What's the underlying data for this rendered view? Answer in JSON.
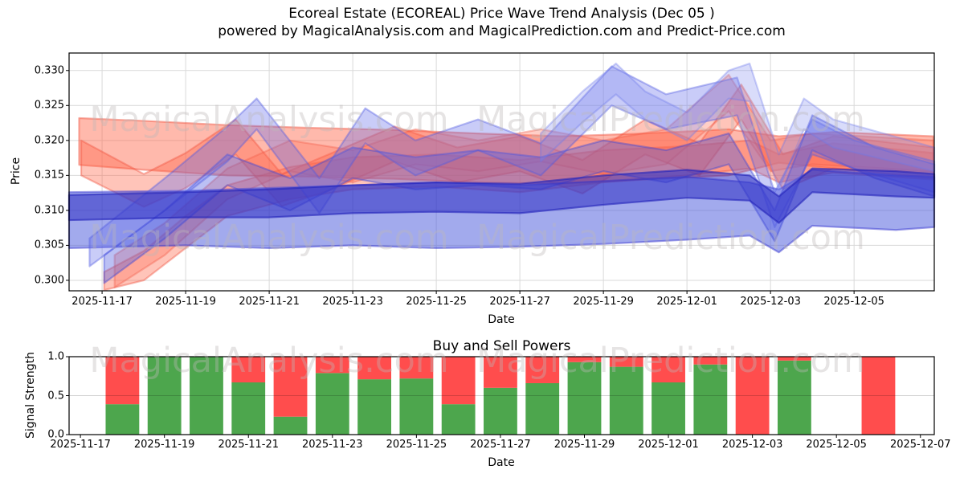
{
  "title": {
    "line1": "Ecoreal Estate (ECOREAL) Price Wave Trend Analysis (Dec 05 )",
    "line2": "powered by MagicalAnalysis.com and MagicalPrediction.com and Predict-Price.com"
  },
  "watermarks": {
    "left_text": "MagicalAnalysis.com",
    "right_text": "MagicalPrediction.com",
    "color": "#e8e4e4"
  },
  "colors": {
    "band_red": "#ff6347",
    "band_blue": "#4155e1",
    "bar_green": "#4da64d",
    "bar_red": "#ff4d4d",
    "grid": "#d9d9d9",
    "frame": "#000000"
  },
  "chart_data": [
    {
      "type": "area",
      "name": "price_wave_trend",
      "title": "Ecoreal Estate (ECOREAL) Price Wave Trend Analysis (Dec 05 )",
      "xlabel": "Date",
      "ylabel": "Price",
      "grid": true,
      "ylim": [
        0.2985,
        0.3325
      ],
      "yticks": [
        0.3,
        0.305,
        0.31,
        0.315,
        0.32,
        0.325,
        0.33
      ],
      "x_unit": "days since 2025-11-17",
      "xlim_days": [
        -0.79,
        19.92
      ],
      "xtick_days": [
        0,
        2,
        4,
        6,
        8,
        10,
        12,
        14,
        16,
        18
      ],
      "xtick_labels": [
        "2025-11-17",
        "2025-11-19",
        "2025-11-21",
        "2025-11-23",
        "2025-11-25",
        "2025-11-27",
        "2025-11-29",
        "2025-12-01",
        "2025-12-03",
        "2025-12-05"
      ],
      "bands": [
        {
          "name": "red-flat-channel",
          "fill": "rgba(255,99,71,0.45)",
          "stroke": "rgba(240,80,60,0.45)",
          "points": [
            [
              -0.55,
              0.3232,
              0.3165
            ],
            [
              1,
              0.3228,
              0.3158
            ],
            [
              3,
              0.3222,
              0.315
            ],
            [
              5,
              0.3218,
              0.3148
            ],
            [
              7,
              0.3215,
              0.3145
            ],
            [
              9,
              0.321,
              0.314
            ],
            [
              11,
              0.3206,
              0.3138
            ],
            [
              13,
              0.321,
              0.3144
            ],
            [
              15,
              0.3216,
              0.315
            ],
            [
              16.2,
              0.3206,
              0.3168
            ],
            [
              17.5,
              0.3212,
              0.316
            ],
            [
              19.9,
              0.3206,
              0.3154
            ]
          ]
        },
        {
          "name": "red-rising-band",
          "fill": "rgba(255,99,71,0.38)",
          "stroke": "rgba(240,80,60,0.40)",
          "points": [
            [
              0.05,
              0.3012,
              0.2986
            ],
            [
              1,
              0.3042,
              0.3
            ],
            [
              2,
              0.3092,
              0.3046
            ],
            [
              3,
              0.3136,
              0.3092
            ],
            [
              4.5,
              0.3162,
              0.3116
            ],
            [
              6,
              0.3176,
              0.313
            ],
            [
              8,
              0.318,
              0.3134
            ],
            [
              10,
              0.3172,
              0.3126
            ],
            [
              12,
              0.3186,
              0.314
            ],
            [
              14,
              0.3192,
              0.315
            ],
            [
              15.5,
              0.32,
              0.316
            ],
            [
              16.2,
              0.318,
              0.314
            ],
            [
              17.5,
              0.3196,
              0.3154
            ],
            [
              19.9,
              0.3182,
              0.3144
            ]
          ]
        },
        {
          "name": "red-wave-band",
          "fill": "rgba(255,99,71,0.38)",
          "stroke": "rgba(240,80,60,0.40)",
          "points": [
            [
              -0.5,
              0.32,
              0.315
            ],
            [
              1,
              0.3152,
              0.3105
            ],
            [
              2,
              0.3182,
              0.3132
            ],
            [
              3.2,
              0.323,
              0.318
            ],
            [
              4.3,
              0.3152,
              0.3106
            ],
            [
              5.5,
              0.3182,
              0.313
            ],
            [
              7,
              0.322,
              0.317
            ],
            [
              8.5,
              0.319,
              0.314
            ],
            [
              10,
              0.3206,
              0.3156
            ],
            [
              11.5,
              0.3172,
              0.3124
            ],
            [
              13,
              0.323,
              0.318
            ],
            [
              14.3,
              0.3196,
              0.315
            ],
            [
              15.3,
              0.328,
              0.323
            ],
            [
              16.3,
              0.318,
              0.313
            ],
            [
              17.5,
              0.3206,
              0.316
            ],
            [
              19.9,
              0.319,
              0.3146
            ]
          ]
        },
        {
          "name": "red-upper-wave-band",
          "fill": "rgba(255,110,85,0.33)",
          "stroke": "rgba(240,90,70,0.35)",
          "points": [
            [
              0.3,
              0.3036,
              0.299
            ],
            [
              1.5,
              0.3082,
              0.3036
            ],
            [
              3,
              0.316,
              0.3116
            ],
            [
              4.5,
              0.32,
              0.3156
            ],
            [
              6,
              0.3186,
              0.314
            ],
            [
              7.5,
              0.3216,
              0.3166
            ],
            [
              9,
              0.32,
              0.3156
            ],
            [
              10.5,
              0.3216,
              0.317
            ],
            [
              12,
              0.32,
              0.3152
            ],
            [
              13.5,
              0.3216,
              0.3166
            ],
            [
              15,
              0.3294,
              0.3242
            ],
            [
              16,
              0.32,
              0.3156
            ],
            [
              17,
              0.321,
              0.3166
            ],
            [
              19.9,
              0.32,
              0.3156
            ]
          ]
        },
        {
          "name": "blue-flat-channel",
          "fill": "rgba(70,85,220,0.50)",
          "stroke": "rgba(60,60,210,0.50)",
          "points": [
            [
              -0.79,
              0.3126,
              0.3046
            ],
            [
              2,
              0.3128,
              0.305
            ],
            [
              4,
              0.3132,
              0.3046
            ],
            [
              6,
              0.3136,
              0.305
            ],
            [
              8,
              0.314,
              0.3046
            ],
            [
              10,
              0.3136,
              0.3048
            ],
            [
              12,
              0.3142,
              0.3052
            ],
            [
              14,
              0.3148,
              0.3058
            ],
            [
              15.5,
              0.314,
              0.3064
            ],
            [
              16.2,
              0.313,
              0.304
            ],
            [
              17,
              0.3158,
              0.3078
            ],
            [
              19,
              0.315,
              0.3072
            ],
            [
              19.92,
              0.3148,
              0.3076
            ]
          ]
        },
        {
          "name": "blue-rising-band",
          "fill": "rgba(75,90,225,0.38)",
          "stroke": "rgba(60,70,215,0.42)",
          "points": [
            [
              0.05,
              0.3036,
              0.2996
            ],
            [
              1.5,
              0.31,
              0.306
            ],
            [
              3,
              0.318,
              0.3136
            ],
            [
              4.5,
              0.3146,
              0.31
            ],
            [
              6,
              0.319,
              0.3146
            ],
            [
              7.5,
              0.3176,
              0.313
            ],
            [
              9,
              0.3186,
              0.3136
            ],
            [
              10.5,
              0.3176,
              0.313
            ],
            [
              12,
              0.32,
              0.3156
            ],
            [
              13.5,
              0.3186,
              0.314
            ],
            [
              15,
              0.321,
              0.3166
            ],
            [
              16.1,
              0.31,
              0.3056
            ],
            [
              17,
              0.3236,
              0.3186
            ],
            [
              18.5,
              0.319,
              0.3146
            ],
            [
              19.92,
              0.3166,
              0.312
            ]
          ]
        },
        {
          "name": "blue-upper-wave-band",
          "fill": "rgba(100,110,235,0.35)",
          "stroke": "rgba(80,90,225,0.40)",
          "points": [
            [
              -0.3,
              0.306,
              0.302
            ],
            [
              1.5,
              0.3146,
              0.31
            ],
            [
              3,
              0.322,
              0.317
            ],
            [
              3.7,
              0.326,
              0.3216
            ],
            [
              5.2,
              0.3146,
              0.3096
            ],
            [
              6.3,
              0.3246,
              0.3196
            ],
            [
              7.5,
              0.32,
              0.315
            ],
            [
              9,
              0.323,
              0.3186
            ],
            [
              10.5,
              0.3196,
              0.315
            ],
            [
              12.2,
              0.3306,
              0.325
            ],
            [
              13.5,
              0.3266,
              0.3216
            ],
            [
              15.2,
              0.329,
              0.3236
            ],
            [
              16.1,
              0.3126,
              0.3076
            ],
            [
              17,
              0.323,
              0.318
            ],
            [
              18,
              0.32,
              0.316
            ],
            [
              19.92,
              0.317,
              0.3126
            ]
          ]
        },
        {
          "name": "blue-dark-band",
          "fill": "rgba(45,45,195,0.55)",
          "stroke": "rgba(35,35,185,0.60)",
          "points": [
            [
              -0.79,
              0.3122,
              0.3086
            ],
            [
              2,
              0.3126,
              0.309
            ],
            [
              4,
              0.313,
              0.309
            ],
            [
              6,
              0.3136,
              0.3096
            ],
            [
              8,
              0.314,
              0.3098
            ],
            [
              10,
              0.3138,
              0.3096
            ],
            [
              12,
              0.315,
              0.3108
            ],
            [
              14,
              0.3158,
              0.3118
            ],
            [
              15.5,
              0.315,
              0.3114
            ],
            [
              16.2,
              0.312,
              0.3082
            ],
            [
              17,
              0.316,
              0.3126
            ],
            [
              19,
              0.3156,
              0.312
            ],
            [
              19.92,
              0.3152,
              0.3118
            ]
          ]
        },
        {
          "name": "blue-spike-band",
          "fill": "rgba(130,140,240,0.30)",
          "stroke": "rgba(110,120,235,0.35)",
          "points": [
            [
              10.5,
              0.321,
              0.317
            ],
            [
              11.5,
              0.327,
              0.3226
            ],
            [
              12.3,
              0.331,
              0.3266
            ],
            [
              13,
              0.327,
              0.323
            ],
            [
              14,
              0.324,
              0.32
            ],
            [
              15,
              0.33,
              0.326
            ],
            [
              15.5,
              0.331,
              0.3256
            ],
            [
              16.2,
              0.318,
              0.313
            ],
            [
              16.8,
              0.326,
              0.3216
            ],
            [
              17.5,
              0.323,
              0.319
            ],
            [
              19.92,
              0.319,
              0.3156
            ]
          ]
        }
      ]
    },
    {
      "type": "bar",
      "stacked": true,
      "name": "buy_sell_powers",
      "title": "Buy and Sell Powers",
      "xlabel": "Date",
      "ylabel": "Signal Strength",
      "ylim": [
        0.0,
        1.0
      ],
      "yticks": [
        0.0,
        0.5,
        1.0
      ],
      "bar_width_days": 0.8,
      "categories": [
        "2025-11-18",
        "2025-11-19",
        "2025-11-20",
        "2025-11-21",
        "2025-11-22",
        "2025-11-23",
        "2025-11-24",
        "2025-11-25",
        "2025-11-26",
        "2025-11-27",
        "2025-11-28",
        "2025-11-29",
        "2025-11-30",
        "2025-12-01",
        "2025-12-02",
        "2025-12-03",
        "2025-12-04",
        "2025-12-05",
        "2025-12-06"
      ],
      "series": [
        {
          "name": "buy power",
          "color": "#4da64d",
          "values": [
            0.39,
            1.0,
            1.0,
            0.67,
            0.23,
            0.79,
            0.71,
            0.72,
            0.39,
            0.6,
            0.66,
            0.93,
            0.87,
            0.67,
            0.9,
            0.0,
            0.95,
            null,
            0.0
          ]
        },
        {
          "name": "sell power",
          "color": "#ff4d4d",
          "values": [
            0.61,
            0.0,
            0.0,
            0.33,
            0.77,
            0.21,
            0.29,
            0.28,
            0.61,
            0.4,
            0.34,
            0.07,
            0.13,
            0.33,
            0.1,
            1.0,
            0.05,
            null,
            1.0
          ]
        }
      ],
      "xlim_days": [
        -0.27,
        20.33
      ],
      "xtick_days": [
        0,
        2,
        4,
        6,
        8,
        10,
        12,
        14,
        16,
        18,
        20
      ],
      "xtick_labels": [
        "2025-11-17",
        "2025-11-19",
        "2025-11-21",
        "2025-11-23",
        "2025-11-25",
        "2025-11-27",
        "2025-11-29",
        "2025-12-01",
        "2025-12-03",
        "2025-12-05",
        "2025-12-07"
      ]
    }
  ]
}
